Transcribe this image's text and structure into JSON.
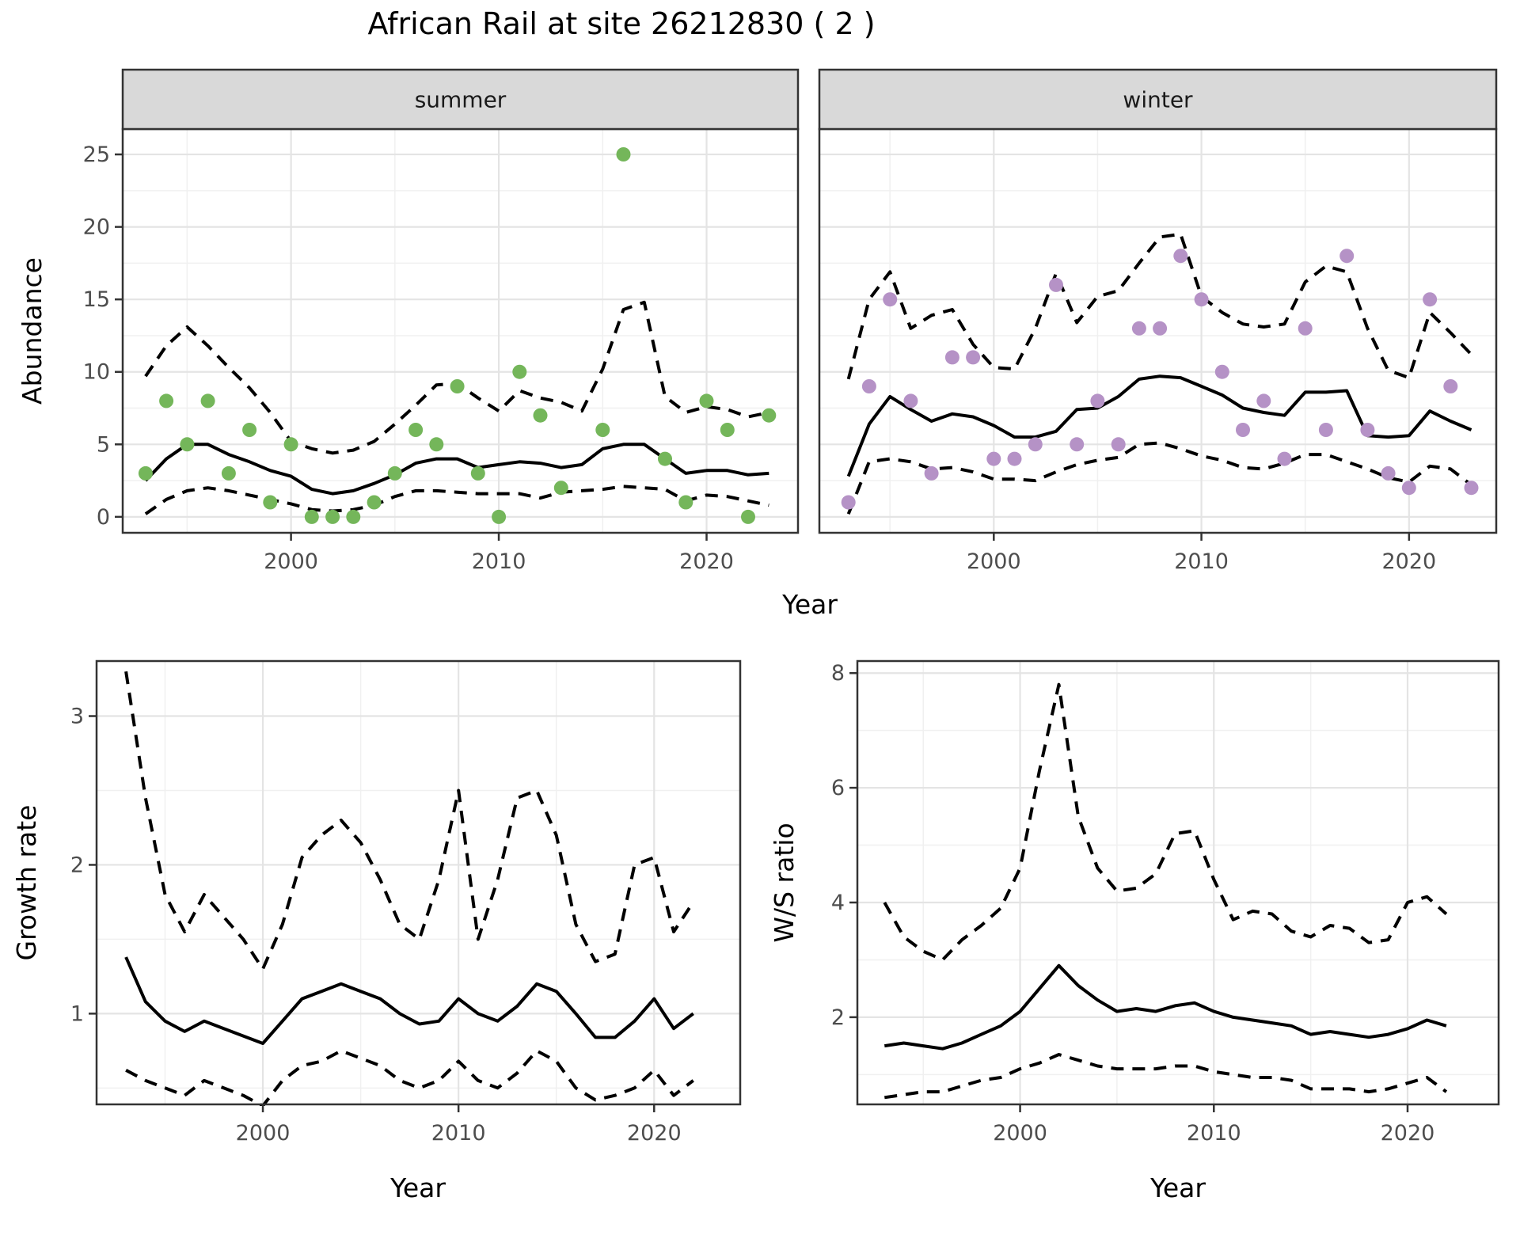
{
  "title": "African Rail at site 26212830 ( 2 )",
  "style": {
    "point_green": "#74b65a",
    "point_purple": "#b592c6",
    "line_color": "#000000",
    "strip_fill": "#d9d9d9",
    "strip_text_color": "#1a1a1a",
    "panel_border": "#333333",
    "grid_major": "#e4e4e4",
    "grid_minor": "#f0f0f0",
    "tick_label_color": "#4d4d4d",
    "background": "#ffffff"
  },
  "chart_data": [
    {
      "id": "summer",
      "type": "scatter",
      "facet": "summer",
      "xlabel": "Year",
      "ylabel": "Abundance",
      "xlim": [
        1991.9,
        2024.4
      ],
      "ylim": [
        -1.1,
        26.75
      ],
      "xticks": [
        2000,
        2010,
        2020
      ],
      "yticks": [
        0,
        5,
        10,
        15,
        20,
        25
      ],
      "point_color": "#74b65a",
      "points": {
        "years": [
          1993,
          1994,
          1995,
          1996,
          1997,
          1998,
          1999,
          2000,
          2001,
          2002,
          2003,
          2004,
          2005,
          2006,
          2007,
          2008,
          2009,
          2010,
          2011,
          2012,
          2013,
          2015,
          2016,
          2018,
          2019,
          2020,
          2021,
          2022,
          2023
        ],
        "values": [
          3,
          8,
          5,
          8,
          3,
          6,
          1,
          5,
          0,
          0,
          0,
          1,
          3,
          6,
          5,
          9,
          3,
          0,
          10,
          7,
          2,
          6,
          25,
          4,
          1,
          8,
          6,
          0,
          7
        ]
      },
      "mean_line": {
        "years": [
          1993,
          1994,
          1995,
          1996,
          1997,
          1998,
          1999,
          2000,
          2001,
          2002,
          2003,
          2004,
          2005,
          2006,
          2007,
          2008,
          2009,
          2010,
          2011,
          2012,
          2013,
          2014,
          2015,
          2016,
          2017,
          2018,
          2019,
          2020,
          2021,
          2022,
          2023
        ],
        "values": [
          2.5,
          4.0,
          5.0,
          5.0,
          4.3,
          3.8,
          3.2,
          2.8,
          1.9,
          1.6,
          1.8,
          2.3,
          2.9,
          3.7,
          4.0,
          4.0,
          3.4,
          3.6,
          3.8,
          3.7,
          3.4,
          3.6,
          4.7,
          5.0,
          5.0,
          4.0,
          3.0,
          3.2,
          3.2,
          2.9,
          3.0
        ]
      },
      "upper_ci": {
        "years": [
          1993,
          1994,
          1995,
          1996,
          1997,
          1998,
          1999,
          2000,
          2001,
          2002,
          2003,
          2004,
          2005,
          2006,
          2007,
          2008,
          2009,
          2010,
          2011,
          2012,
          2013,
          2014,
          2015,
          2016,
          2017,
          2018,
          2019,
          2020,
          2021,
          2022,
          2023
        ],
        "values": [
          9.7,
          11.8,
          13.1,
          11.8,
          10.3,
          8.9,
          7.2,
          5.2,
          4.7,
          4.4,
          4.6,
          5.2,
          6.4,
          7.7,
          9.1,
          9.2,
          8.2,
          7.3,
          8.7,
          8.2,
          7.9,
          7.3,
          10.2,
          14.3,
          14.8,
          8.3,
          7.2,
          7.6,
          7.4,
          6.9,
          7.2
        ]
      },
      "lower_ci": {
        "years": [
          1993,
          1994,
          1995,
          1996,
          1997,
          1998,
          1999,
          2000,
          2001,
          2002,
          2003,
          2004,
          2005,
          2006,
          2007,
          2008,
          2009,
          2010,
          2011,
          2012,
          2013,
          2014,
          2015,
          2016,
          2017,
          2018,
          2019,
          2020,
          2021,
          2022,
          2023
        ],
        "values": [
          0.2,
          1.2,
          1.8,
          2.0,
          1.8,
          1.5,
          1.2,
          0.9,
          0.5,
          0.4,
          0.5,
          0.8,
          1.4,
          1.8,
          1.8,
          1.7,
          1.6,
          1.6,
          1.6,
          1.3,
          1.7,
          1.8,
          1.9,
          2.1,
          2.0,
          1.9,
          1.1,
          1.5,
          1.4,
          1.1,
          0.8
        ]
      }
    },
    {
      "id": "winter",
      "type": "scatter",
      "facet": "winter",
      "xlabel": "Year",
      "ylabel": "Abundance",
      "xlim": [
        1991.6,
        2024.2
      ],
      "ylim": [
        -1.1,
        26.75
      ],
      "xticks": [
        2000,
        2010,
        2020
      ],
      "yticks": [
        0,
        5,
        10,
        15,
        20,
        25
      ],
      "point_color": "#b592c6",
      "points": {
        "years": [
          1993,
          1994,
          1995,
          1996,
          1997,
          1998,
          1999,
          2000,
          2001,
          2002,
          2003,
          2004,
          2005,
          2006,
          2007,
          2008,
          2009,
          2010,
          2011,
          2012,
          2013,
          2014,
          2015,
          2016,
          2017,
          2018,
          2019,
          2020,
          2021,
          2022,
          2023
        ],
        "values": [
          1,
          9,
          15,
          8,
          3,
          11,
          11,
          4,
          4,
          5,
          16,
          5,
          8,
          5,
          13,
          13,
          18,
          15,
          10,
          6,
          8,
          4,
          13,
          6,
          18,
          6,
          3,
          2,
          15,
          9,
          2
        ]
      },
      "mean_line": {
        "years": [
          1993,
          1994,
          1995,
          1996,
          1997,
          1998,
          1999,
          2000,
          2001,
          2002,
          2003,
          2004,
          2005,
          2006,
          2007,
          2008,
          2009,
          2010,
          2011,
          2012,
          2013,
          2014,
          2015,
          2016,
          2017,
          2018,
          2019,
          2020,
          2021,
          2022,
          2023
        ],
        "values": [
          2.8,
          6.4,
          8.3,
          7.4,
          6.6,
          7.1,
          6.9,
          6.3,
          5.5,
          5.5,
          5.9,
          7.4,
          7.5,
          8.3,
          9.5,
          9.7,
          9.6,
          9.0,
          8.4,
          7.5,
          7.2,
          7.0,
          8.6,
          8.6,
          8.7,
          5.6,
          5.5,
          5.6,
          7.3,
          6.6,
          6.0
        ]
      },
      "upper_ci": {
        "years": [
          1993,
          1994,
          1995,
          1996,
          1997,
          1998,
          1999,
          2000,
          2001,
          2002,
          2003,
          2004,
          2005,
          2006,
          2007,
          2008,
          2009,
          2010,
          2011,
          2012,
          2013,
          2014,
          2015,
          2016,
          2017,
          2018,
          2019,
          2020,
          2021,
          2022,
          2023
        ],
        "values": [
          9.5,
          15.0,
          16.9,
          13.0,
          13.9,
          14.3,
          11.9,
          10.3,
          10.2,
          13.0,
          16.8,
          13.4,
          15.2,
          15.6,
          17.5,
          19.3,
          19.5,
          15.2,
          14.1,
          13.3,
          13.1,
          13.3,
          16.2,
          17.3,
          16.9,
          13.0,
          10.1,
          9.6,
          14.1,
          12.7,
          11.2
        ]
      },
      "lower_ci": {
        "years": [
          1993,
          1994,
          1995,
          1996,
          1997,
          1998,
          1999,
          2000,
          2001,
          2002,
          2003,
          2004,
          2005,
          2006,
          2007,
          2008,
          2009,
          2010,
          2011,
          2012,
          2013,
          2014,
          2015,
          2016,
          2017,
          2018,
          2019,
          2020,
          2021,
          2022,
          2023
        ],
        "values": [
          0.2,
          3.8,
          4.0,
          3.8,
          3.3,
          3.4,
          3.1,
          2.6,
          2.6,
          2.5,
          3.1,
          3.6,
          3.9,
          4.1,
          5.0,
          5.1,
          4.7,
          4.2,
          3.9,
          3.4,
          3.3,
          3.7,
          4.3,
          4.3,
          3.8,
          3.3,
          2.7,
          2.4,
          3.5,
          3.3,
          2.2
        ]
      }
    },
    {
      "id": "growth",
      "type": "line",
      "facet": null,
      "xlabel": "Year",
      "ylabel": "Growth rate",
      "xlim": [
        1991.5,
        2024.4
      ],
      "ylim": [
        0.39,
        3.37
      ],
      "xticks": [
        2000,
        2010,
        2020
      ],
      "yticks": [
        1,
        2,
        3
      ],
      "mean_line": {
        "years": [
          1993,
          1994,
          1995,
          1996,
          1997,
          1998,
          1999,
          2000,
          2001,
          2002,
          2003,
          2004,
          2005,
          2006,
          2007,
          2008,
          2009,
          2010,
          2011,
          2012,
          2013,
          2014,
          2015,
          2016,
          2017,
          2018,
          2019,
          2020,
          2021,
          2022
        ],
        "values": [
          1.38,
          1.08,
          0.95,
          0.88,
          0.95,
          0.9,
          0.85,
          0.8,
          0.95,
          1.1,
          1.15,
          1.2,
          1.15,
          1.1,
          1.0,
          0.93,
          0.95,
          1.1,
          1.0,
          0.95,
          1.05,
          1.2,
          1.15,
          1.0,
          0.84,
          0.84,
          0.95,
          1.1,
          0.9,
          1.0
        ]
      },
      "upper_ci": {
        "years": [
          1993,
          1994,
          1995,
          1996,
          1997,
          1998,
          1999,
          2000,
          2001,
          2002,
          2003,
          2004,
          2005,
          2006,
          2007,
          2008,
          2009,
          2010,
          2011,
          2012,
          2013,
          2014,
          2015,
          2016,
          2017,
          2018,
          2019,
          2020,
          2021,
          2022
        ],
        "values": [
          3.3,
          2.45,
          1.8,
          1.55,
          1.8,
          1.65,
          1.5,
          1.3,
          1.6,
          2.05,
          2.2,
          2.3,
          2.15,
          1.9,
          1.6,
          1.5,
          1.9,
          2.5,
          1.5,
          1.9,
          2.45,
          2.5,
          2.2,
          1.6,
          1.35,
          1.4,
          2.0,
          2.05,
          1.55,
          1.75
        ]
      },
      "lower_ci": {
        "years": [
          1993,
          1994,
          1995,
          1996,
          1997,
          1998,
          1999,
          2000,
          2001,
          2002,
          2003,
          2004,
          2005,
          2006,
          2007,
          2008,
          2009,
          2010,
          2011,
          2012,
          2013,
          2014,
          2015,
          2016,
          2017,
          2018,
          2019,
          2020,
          2021,
          2022
        ],
        "values": [
          0.62,
          0.55,
          0.5,
          0.45,
          0.55,
          0.5,
          0.45,
          0.38,
          0.55,
          0.65,
          0.68,
          0.75,
          0.7,
          0.65,
          0.55,
          0.5,
          0.55,
          0.68,
          0.55,
          0.5,
          0.6,
          0.75,
          0.68,
          0.5,
          0.42,
          0.45,
          0.5,
          0.62,
          0.45,
          0.55
        ]
      }
    },
    {
      "id": "ws",
      "type": "line",
      "facet": null,
      "xlabel": "Year",
      "ylabel": "W/S ratio",
      "xlim": [
        1991.6,
        2024.7
      ],
      "ylim": [
        0.48,
        8.21
      ],
      "xticks": [
        2000,
        2010,
        2020
      ],
      "yticks": [
        2,
        4,
        6,
        8
      ],
      "mean_line": {
        "years": [
          1993,
          1994,
          1995,
          1996,
          1997,
          1998,
          1999,
          2000,
          2001,
          2002,
          2003,
          2004,
          2005,
          2006,
          2007,
          2008,
          2009,
          2010,
          2011,
          2012,
          2013,
          2014,
          2015,
          2016,
          2017,
          2018,
          2019,
          2020,
          2021,
          2022
        ],
        "values": [
          1.5,
          1.55,
          1.5,
          1.45,
          1.55,
          1.7,
          1.85,
          2.1,
          2.5,
          2.9,
          2.55,
          2.3,
          2.1,
          2.15,
          2.1,
          2.2,
          2.25,
          2.1,
          2.0,
          1.95,
          1.9,
          1.85,
          1.7,
          1.75,
          1.7,
          1.65,
          1.7,
          1.8,
          1.95,
          1.85
        ]
      },
      "upper_ci": {
        "years": [
          1993,
          1994,
          1995,
          1996,
          1997,
          1998,
          1999,
          2000,
          2001,
          2002,
          2003,
          2004,
          2005,
          2006,
          2007,
          2008,
          2009,
          2010,
          2011,
          2012,
          2013,
          2014,
          2015,
          2016,
          2017,
          2018,
          2019,
          2020,
          2021,
          2022
        ],
        "values": [
          4.0,
          3.4,
          3.15,
          3.0,
          3.35,
          3.6,
          3.9,
          4.6,
          6.3,
          7.8,
          5.5,
          4.6,
          4.2,
          4.25,
          4.5,
          5.2,
          5.25,
          4.4,
          3.7,
          3.85,
          3.8,
          3.5,
          3.4,
          3.6,
          3.55,
          3.3,
          3.35,
          4.0,
          4.1,
          3.8
        ]
      },
      "lower_ci": {
        "years": [
          1993,
          1994,
          1995,
          1996,
          1997,
          1998,
          1999,
          2000,
          2001,
          2002,
          2003,
          2004,
          2005,
          2006,
          2007,
          2008,
          2009,
          2010,
          2011,
          2012,
          2013,
          2014,
          2015,
          2016,
          2017,
          2018,
          2019,
          2020,
          2021,
          2022
        ],
        "values": [
          0.6,
          0.65,
          0.7,
          0.7,
          0.8,
          0.9,
          0.95,
          1.1,
          1.2,
          1.35,
          1.25,
          1.15,
          1.1,
          1.1,
          1.1,
          1.15,
          1.15,
          1.05,
          1.0,
          0.95,
          0.95,
          0.9,
          0.75,
          0.75,
          0.75,
          0.7,
          0.75,
          0.85,
          0.95,
          0.7
        ]
      }
    }
  ]
}
